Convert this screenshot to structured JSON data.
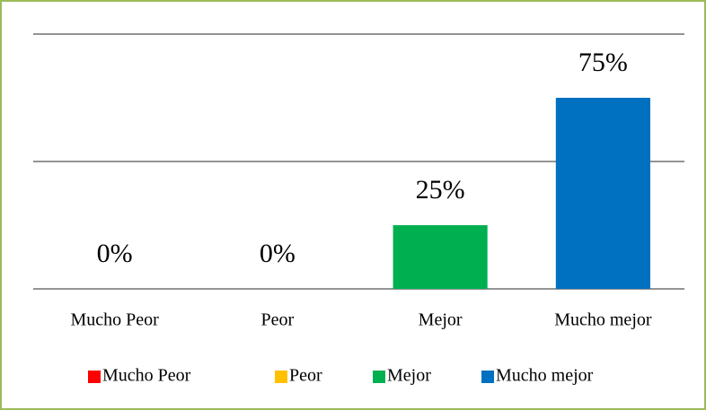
{
  "chart_data": {
    "type": "bar",
    "categories": [
      "Mucho Peor",
      "Peor",
      "Mejor",
      "Mucho mejor"
    ],
    "values": [
      0,
      0,
      25,
      75
    ],
    "value_labels": [
      "0%",
      "0%",
      "25%",
      "75%"
    ],
    "colors": [
      "#ff0000",
      "#ffc000",
      "#00b050",
      "#0070c0"
    ],
    "ylim": [
      0,
      100
    ],
    "yticks": [
      0,
      50,
      100
    ],
    "grid": true,
    "legend": "bottom"
  }
}
